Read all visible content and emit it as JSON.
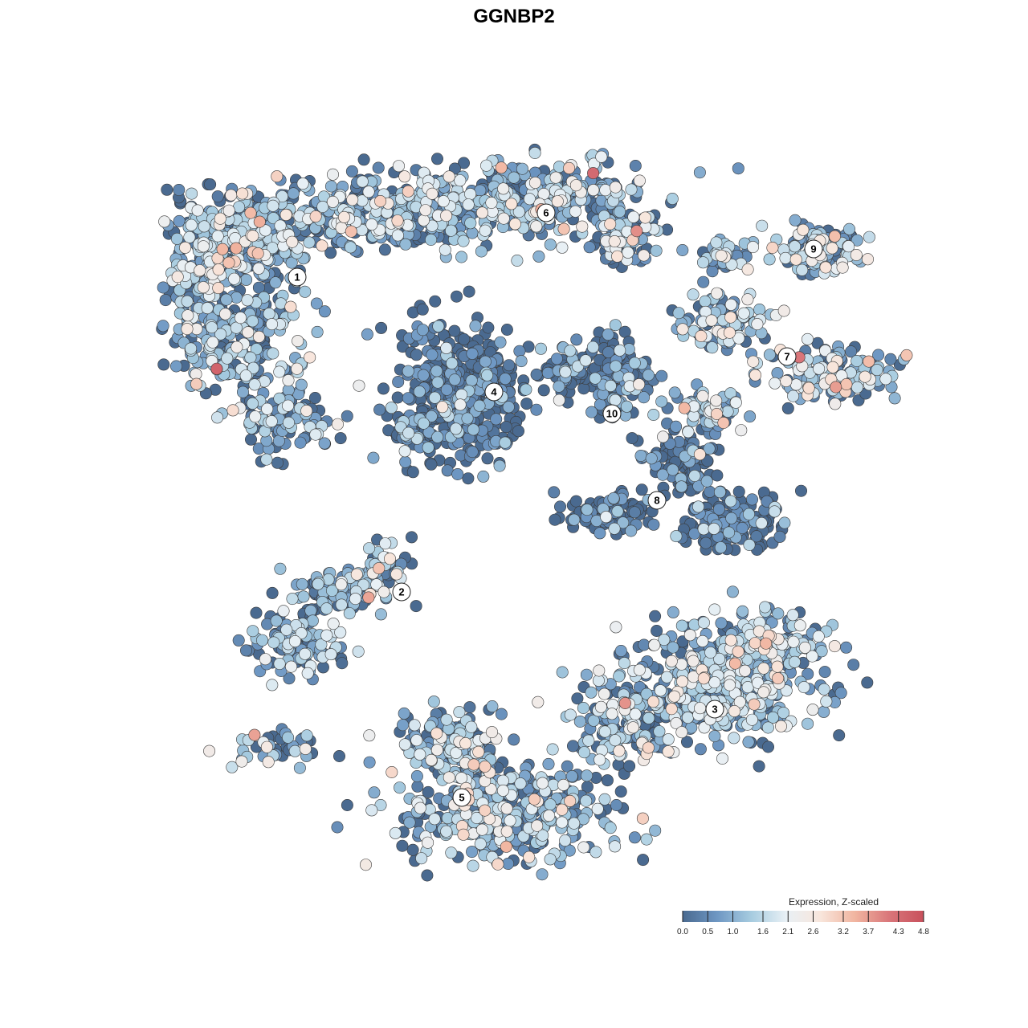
{
  "chart_data": {
    "type": "scatter",
    "title": "GGNBP2",
    "colorbar": {
      "title": "Expression, Z-scaled",
      "ticks": [
        0.0,
        0.5,
        1.0,
        1.6,
        2.1,
        2.6,
        3.2,
        3.7,
        4.3,
        4.8
      ],
      "tick_labels": [
        "0.0",
        "0.5",
        "1.0",
        "1.6",
        "2.1",
        "2.6",
        "3.2",
        "3.7",
        "4.3",
        "4.8"
      ],
      "range": [
        0.0,
        4.8
      ],
      "colors": [
        "#4A6A90",
        "#6E97C3",
        "#A7CCE0",
        "#E8F0F5",
        "#F8E6DC",
        "#F1B5A0",
        "#D9767A",
        "#C8505C"
      ],
      "placement": "bottom-right"
    },
    "clusters": [
      {
        "label": "1",
        "mean_expression": 1.3
      },
      {
        "label": "2",
        "mean_expression": 1.0
      },
      {
        "label": "3",
        "mean_expression": 1.4
      },
      {
        "label": "4",
        "mean_expression": 0.3
      },
      {
        "label": "5",
        "mean_expression": 1.2
      },
      {
        "label": "6",
        "mean_expression": 1.3
      },
      {
        "label": "7",
        "mean_expression": 1.6
      },
      {
        "label": "8",
        "mean_expression": 0.2
      },
      {
        "label": "9",
        "mean_expression": 1.5
      },
      {
        "label": "10",
        "mean_expression": 0.3
      }
    ],
    "xlabel": "",
    "ylabel": "",
    "grid": false,
    "axes_visible": false
  }
}
